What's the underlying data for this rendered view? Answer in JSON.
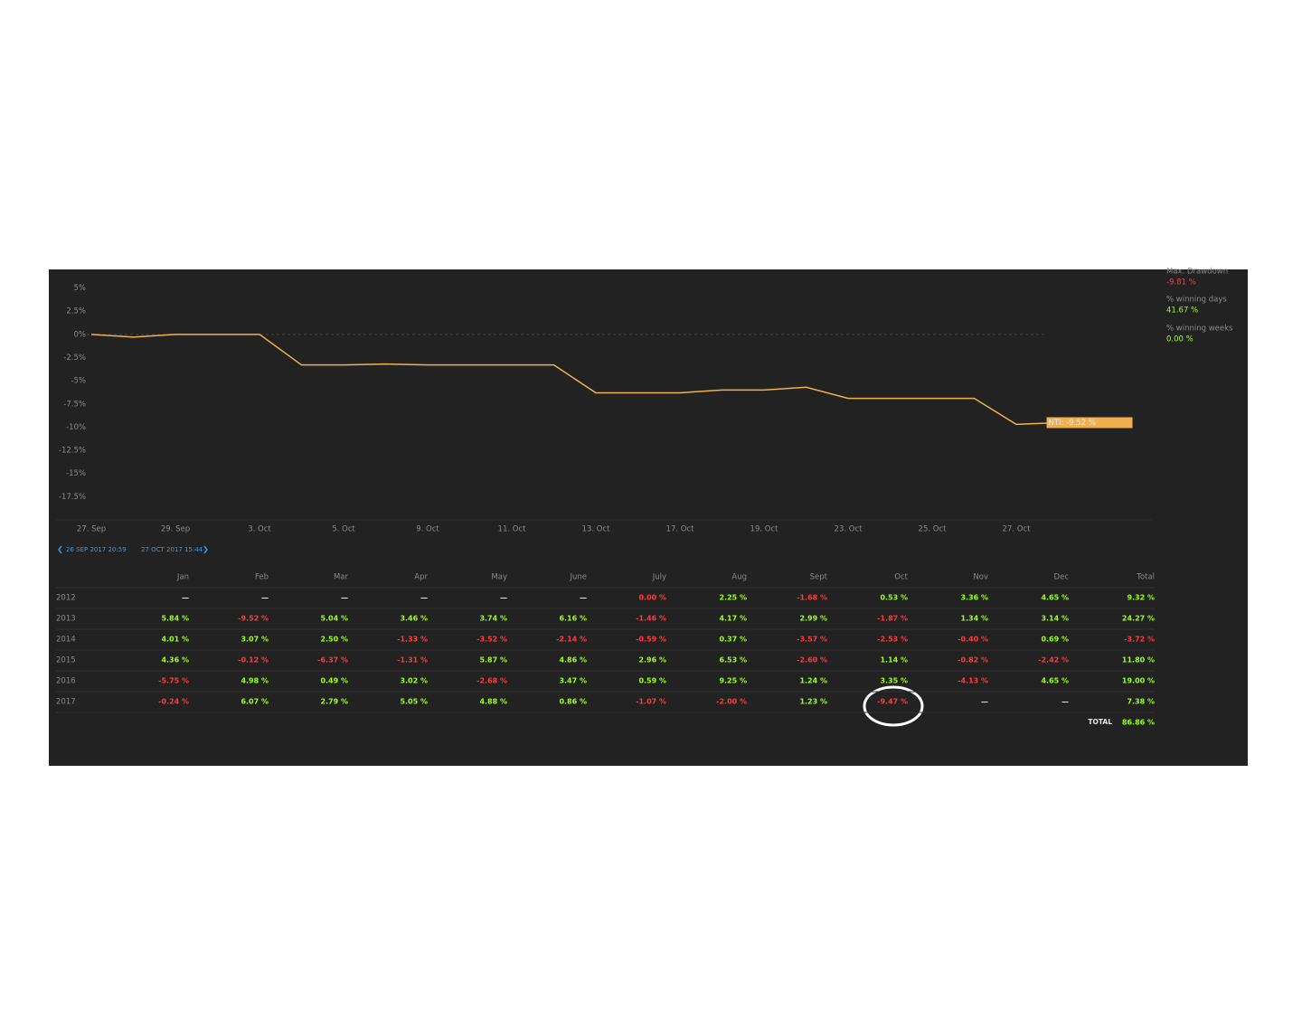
{
  "chart_data": {
    "type": "line",
    "categories": [
      "27. Sep",
      null,
      "29. Sep",
      null,
      "3. Oct",
      null,
      "5. Oct",
      null,
      "9. Oct",
      null,
      "11. Oct",
      null,
      "13. Oct",
      null,
      "17. Oct",
      null,
      "19. Oct",
      null,
      "23. Oct",
      null,
      "25. Oct",
      null,
      "27. Oct",
      null,
      null,
      null
    ],
    "values": [
      0,
      -0.3,
      0,
      0,
      0,
      -3.3,
      -3.3,
      -3.2,
      -3.3,
      -3.3,
      -3.3,
      -3.3,
      -6.3,
      -6.3,
      -6.3,
      -6.0,
      -6.0,
      -5.7,
      -6.9,
      -6.9,
      -6.9,
      -6.9,
      -9.7,
      -9.52,
      null,
      null
    ],
    "color": "#f0b050",
    "ylim": [
      -20,
      7
    ],
    "yticks": [
      {
        "value": 5,
        "label": "5%"
      },
      {
        "value": 2.5,
        "label": "2.5%"
      },
      {
        "value": 0,
        "label": "0%"
      },
      {
        "value": -2.5,
        "label": "-2.5%"
      },
      {
        "value": -5,
        "label": "-5%"
      },
      {
        "value": -7.5,
        "label": "-7.5%"
      },
      {
        "value": -10,
        "label": "-10%"
      },
      {
        "value": -12.5,
        "label": "-12.5%"
      },
      {
        "value": -15,
        "label": "-15%"
      },
      {
        "value": -17.5,
        "label": "-17.5%"
      }
    ],
    "end_label": "NTI: -9.52 %"
  },
  "stats": [
    {
      "label": "Max. Drawdown",
      "value": "-9.81 %"
    },
    {
      "label": "% winning days",
      "value": "41.67 %"
    },
    {
      "label": "% winning weeks",
      "value": "0.00 %"
    }
  ],
  "range": {
    "start": "26 SEP 2017 20:59",
    "end": "27 OCT 2017 15:44"
  },
  "table": {
    "header": [
      "Jan",
      "Feb",
      "Mar",
      "Apr",
      "May",
      "June",
      "July",
      "Aug",
      "Sept",
      "Oct",
      "Nov",
      "Dec",
      "Total"
    ],
    "rows": [
      [
        "2012",
        "—",
        "—",
        "—",
        "—",
        "—",
        "—",
        "0.00 %",
        "2.25 %",
        "-1.68 %",
        "0.53 %",
        "3.36 %",
        "4.65 %",
        "9.32 %"
      ],
      [
        "2013",
        "5.84 %",
        "-9.52 %",
        "5.04 %",
        "3.46 %",
        "3.74 %",
        "6.16 %",
        "-1.46 %",
        "4.17 %",
        "2.99 %",
        "-1.87 %",
        "1.34 %",
        "3.14 %",
        "24.27 %"
      ],
      [
        "2014",
        "4.01 %",
        "3.07 %",
        "2.50 %",
        "-1.33 %",
        "-3.52 %",
        "-2.14 %",
        "-0.59 %",
        "0.37 %",
        "-3.57 %",
        "-2.53 %",
        "-0.40 %",
        "0.69 %",
        "-3.72 %"
      ],
      [
        "2015",
        "4.36 %",
        "-0.12 %",
        "-6.37 %",
        "-1.31 %",
        "5.87 %",
        "4.86 %",
        "2.96 %",
        "6.53 %",
        "-2.60 %",
        "1.14 %",
        "-0.82 %",
        "-2.42 %",
        "11.80 %"
      ],
      [
        "2016",
        "-5.75 %",
        "4.98 %",
        "0.49 %",
        "3.02 %",
        "-2.68 %",
        "3.47 %",
        "0.59 %",
        "9.25 %",
        "1.24 %",
        "3.35 %",
        "-4.13 %",
        "4.65 %",
        "19.00 %"
      ],
      [
        "2017",
        "-0.24 %",
        "6.07 %",
        "2.79 %",
        "5.05 %",
        "4.88 %",
        "0.86 %",
        "-1.07 %",
        "-2.00 %",
        "1.23 %",
        "-9.47 %",
        "—",
        "—",
        "7.38 %"
      ]
    ],
    "total_label": "TOTAL",
    "total_value": "86.86 %"
  }
}
